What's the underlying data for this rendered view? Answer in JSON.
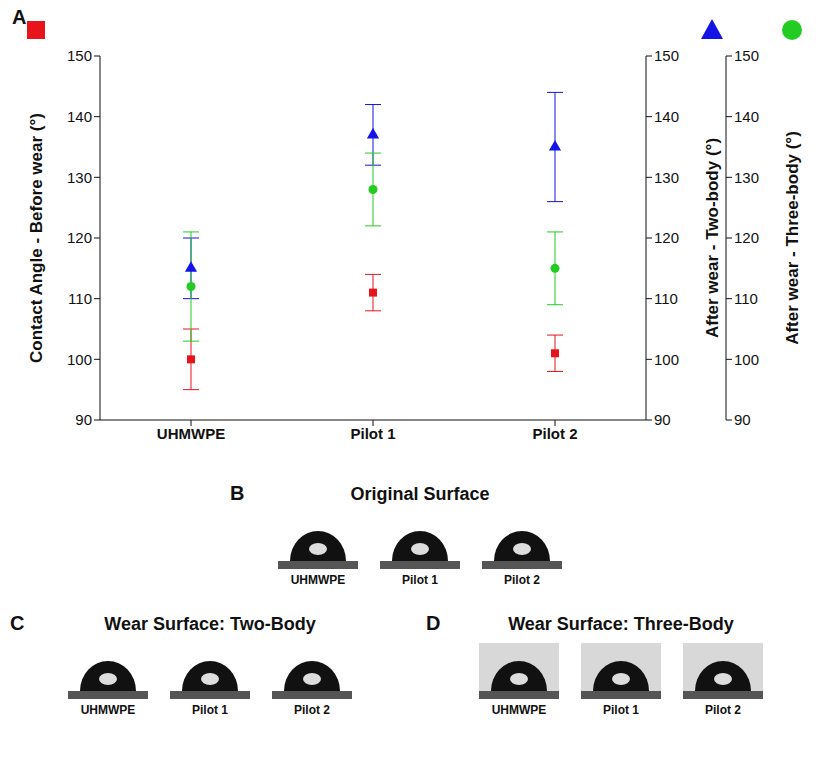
{
  "chart_data": {
    "type": "scatter",
    "label": "A",
    "categories": [
      "UHMWPE",
      "Pilot 1",
      "Pilot 2"
    ],
    "ylabel": "Contact Angle - Before wear (°)",
    "y2label": "After wear - Two-body (°)",
    "y3label": "After wear - Three-body (°)",
    "ylim": [
      90,
      150
    ],
    "yticks": [
      90,
      100,
      110,
      120,
      130,
      140,
      150
    ],
    "y2lim": [
      90,
      150
    ],
    "y2ticks": [
      90,
      100,
      110,
      120,
      130,
      140,
      150
    ],
    "y3lim": [
      90,
      150
    ],
    "y3ticks": [
      90,
      100,
      110,
      120,
      130,
      140,
      150
    ],
    "series": [
      {
        "color": "#e8141c",
        "marker": "square",
        "values": [
          100,
          111,
          101
        ],
        "errors": [
          5,
          3,
          3
        ]
      },
      {
        "color": "#1414e6",
        "marker": "triangle",
        "axis": "y2",
        "values": [
          115,
          137,
          135
        ],
        "errors": [
          5,
          5,
          9
        ]
      },
      {
        "color": "#22cc22",
        "marker": "circle",
        "axis": "y3",
        "values": [
          112,
          128,
          115
        ],
        "errors": [
          9,
          6,
          6
        ]
      }
    ]
  },
  "panels": [
    {
      "label": "B",
      "title": "Original Surface",
      "samples": [
        "UHMWPE",
        "Pilot 1",
        "Pilot 2"
      ]
    },
    {
      "label": "C",
      "title": "Wear Surface: Two-Body",
      "samples": [
        "UHMWPE",
        "Pilot 1",
        "Pilot 2"
      ]
    },
    {
      "label": "D",
      "title": "Wear Surface: Three-Body",
      "samples": [
        "UHMWPE",
        "Pilot 1",
        "Pilot 2"
      ]
    }
  ]
}
